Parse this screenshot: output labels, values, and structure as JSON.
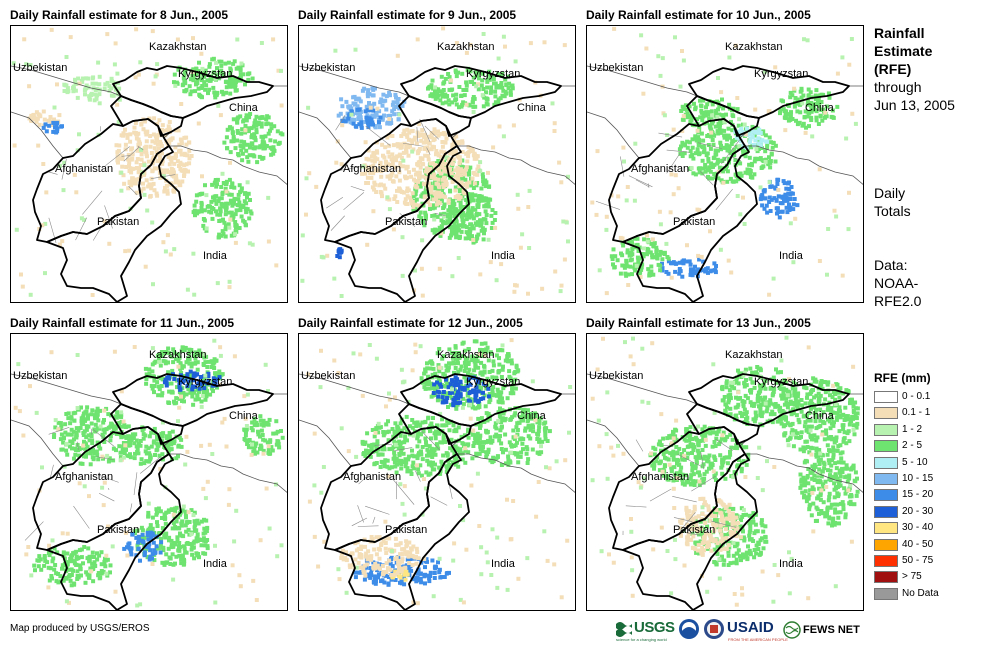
{
  "panels": [
    {
      "title": "Daily Rainfall estimate for 8 Jun., 2005",
      "labels": {
        "kazakhstan": "Kazakhstan",
        "uzbekistan": "Uzbekistan",
        "kyrgyzstan": "Kyrgyzstan",
        "china": "China",
        "afghanistan": "Afghanistan",
        "pakistan": "Pakistan",
        "india": "India"
      }
    },
    {
      "title": "Daily Rainfall estimate for 9 Jun., 2005",
      "labels": {
        "kazakhstan": "Kazakhstan",
        "uzbekistan": "Uzbekistan",
        "kyrgyzstan": "Kyrgyzstan",
        "china": "China",
        "afghanistan": "Afghanistan",
        "pakistan": "Pakistan",
        "india": "India"
      }
    },
    {
      "title": "Daily Rainfall estimate for 10 Jun., 2005",
      "labels": {
        "kazakhstan": "Kazakhstan",
        "uzbekistan": "Uzbekistan",
        "kyrgyzstan": "Kyrgyzstan",
        "china": "China",
        "afghanistan": "Afghanistan",
        "pakistan": "Pakistan",
        "india": "India"
      }
    },
    {
      "title": "Daily Rainfall estimate for 11 Jun., 2005",
      "labels": {
        "kazakhstan": "Kazakhstan",
        "uzbekistan": "Uzbekistan",
        "kyrgyzstan": "Kyrgyzstan",
        "china": "China",
        "afghanistan": "Afghanistan",
        "pakistan": "Pakistan",
        "india": "India"
      }
    },
    {
      "title": "Daily Rainfall estimate for 12 Jun., 2005",
      "labels": {
        "kazakhstan": "Kazakhstan",
        "uzbekistan": "Uzbekistan",
        "kyrgyzstan": "Kyrgyzstan",
        "china": "China",
        "afghanistan": "Afghanistan",
        "pakistan": "Pakistan",
        "india": "India"
      }
    },
    {
      "title": "Daily Rainfall estimate for 13 Jun., 2005",
      "labels": {
        "kazakhstan": "Kazakhstan",
        "uzbekistan": "Uzbekistan",
        "kyrgyzstan": "Kyrgyzstan",
        "china": "China",
        "afghanistan": "Afghanistan",
        "pakistan": "Pakistan",
        "india": "India"
      }
    }
  ],
  "sidebar": {
    "heading_line1": "Rainfall",
    "heading_line2": "Estimate",
    "heading_line3": "(RFE)",
    "through": "through",
    "date": "Jun 13, 2005",
    "daily1": "Daily",
    "daily2": "Totals",
    "data1": "Data:",
    "data2": "NOAA-",
    "data3": "RFE2.0"
  },
  "legend": {
    "title": "RFE (mm)",
    "items": [
      {
        "label": "0 - 0.1",
        "color": "#ffffff"
      },
      {
        "label": "0.1 - 1",
        "color": "#f3deb8"
      },
      {
        "label": "1 - 2",
        "color": "#b8f2b0"
      },
      {
        "label": "2 - 5",
        "color": "#6fe36f"
      },
      {
        "label": "5 - 10",
        "color": "#b0f0f5"
      },
      {
        "label": "10 - 15",
        "color": "#80b8f0"
      },
      {
        "label": "15 - 20",
        "color": "#3d8ce8"
      },
      {
        "label": "20 - 30",
        "color": "#1c5fd6"
      },
      {
        "label": "30 - 40",
        "color": "#ffe680"
      },
      {
        "label": "40 - 50",
        "color": "#ffa500"
      },
      {
        "label": "50 - 75",
        "color": "#ff3000"
      },
      {
        "label": "> 75",
        "color": "#a01010"
      },
      {
        "label": "No Data",
        "color": "#999999"
      }
    ]
  },
  "footer": {
    "credit": "Map produced by USGS/EROS",
    "usgs": "USGS",
    "usgs_tag": "science for a changing world",
    "usaid": "USAID",
    "usaid_tag": "FROM THE AMERICAN PEOPLE",
    "fewsnet": "FEWS NET"
  }
}
